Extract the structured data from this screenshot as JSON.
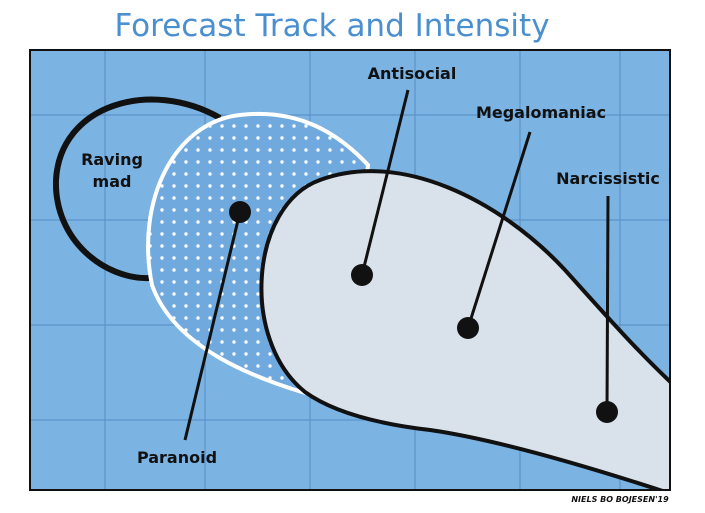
{
  "title": "Forecast Track and Intensity",
  "labels": {
    "raving_mad": [
      "Raving",
      "mad"
    ],
    "paranoid": "Paranoid",
    "antisocial": "Antisocial",
    "megalomaniac": "Megalomaniac",
    "narcissistic": "Narcissistic"
  },
  "signature": "NIELS BO BOJESEN'19"
}
